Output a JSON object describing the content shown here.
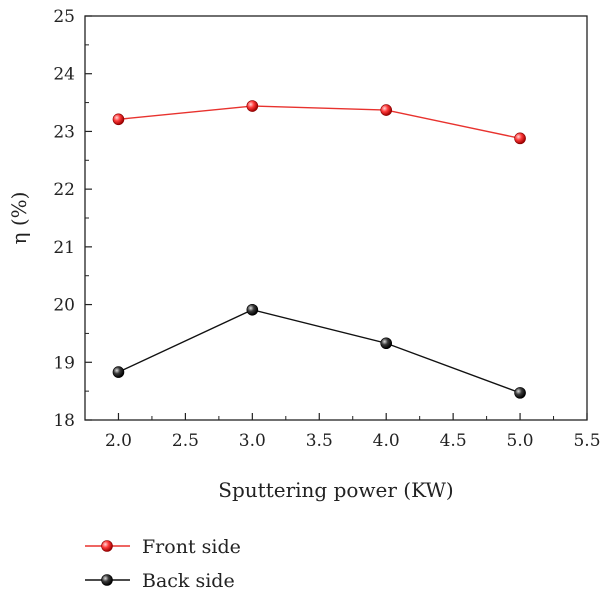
{
  "chart_data": {
    "type": "line",
    "xlabel": "Sputtering power (KW)",
    "ylabel": "η (%)",
    "xlim": [
      1.75,
      5.5
    ],
    "ylim": [
      18,
      25
    ],
    "xticks": [
      "2.0",
      "2.5",
      "3.0",
      "3.5",
      "4.0",
      "4.5",
      "5.0",
      "5.5"
    ],
    "yticks": [
      "18",
      "19",
      "20",
      "21",
      "22",
      "23",
      "24",
      "25"
    ],
    "x": [
      2.0,
      3.0,
      4.0,
      5.0
    ],
    "series": [
      {
        "name": "Front side",
        "values": [
          23.21,
          23.44,
          23.37,
          22.88
        ],
        "color": "#e8322e"
      },
      {
        "name": "Back side",
        "values": [
          18.83,
          19.91,
          19.33,
          18.47
        ],
        "color": "#111111"
      }
    ],
    "legend_position": "bottom-left, below plot",
    "grid": false
  }
}
